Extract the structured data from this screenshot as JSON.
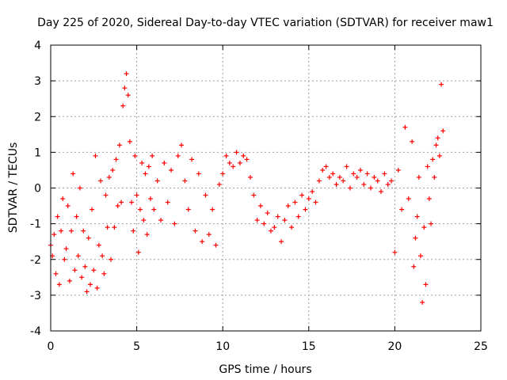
{
  "chart_data": {
    "type": "scatter",
    "title": "Day 225 of 2020, Sidereal Day-to-day VTEC variation (SDTVAR) for receiver maw1",
    "xlabel": "GPS time / hours",
    "ylabel": "SDTVAR / TECUs",
    "xlim": [
      0,
      25
    ],
    "ylim": [
      -4,
      4
    ],
    "x_ticks": [
      0,
      5,
      10,
      15,
      20,
      25
    ],
    "y_ticks": [
      -4,
      -3,
      -2,
      -1,
      0,
      1,
      2,
      3,
      4
    ],
    "grid": true,
    "marker": "+",
    "colors": {
      "series": "#ff0000",
      "grid": "#a0a0a0",
      "axis": "#000000"
    },
    "series": [
      {
        "name": "maw1",
        "x": [
          0.0,
          0.1,
          0.2,
          0.3,
          0.4,
          0.5,
          0.6,
          0.7,
          0.8,
          0.9,
          1.0,
          1.1,
          1.2,
          1.3,
          1.4,
          1.5,
          1.6,
          1.7,
          1.8,
          1.9,
          2.0,
          2.1,
          2.2,
          2.3,
          2.4,
          2.5,
          2.6,
          2.7,
          2.8,
          2.9,
          3.0,
          3.1,
          3.2,
          3.3,
          3.4,
          3.5,
          3.6,
          3.7,
          3.8,
          3.9,
          4.0,
          4.1,
          4.2,
          4.3,
          4.4,
          4.5,
          4.6,
          4.7,
          4.8,
          4.9,
          5.0,
          5.1,
          5.2,
          5.3,
          5.4,
          5.5,
          5.6,
          5.7,
          5.8,
          5.9,
          6.0,
          6.2,
          6.4,
          6.6,
          6.8,
          7.0,
          7.2,
          7.4,
          7.6,
          7.8,
          8.0,
          8.2,
          8.4,
          8.6,
          8.8,
          9.0,
          9.2,
          9.4,
          9.6,
          9.8,
          10.0,
          10.2,
          10.4,
          10.6,
          10.8,
          11.0,
          11.2,
          11.4,
          11.6,
          11.8,
          12.0,
          12.2,
          12.4,
          12.6,
          12.8,
          13.0,
          13.2,
          13.4,
          13.6,
          13.8,
          14.0,
          14.2,
          14.4,
          14.6,
          14.8,
          15.0,
          15.2,
          15.4,
          15.6,
          15.8,
          16.0,
          16.2,
          16.4,
          16.6,
          16.8,
          17.0,
          17.2,
          17.4,
          17.6,
          17.8,
          18.0,
          18.2,
          18.4,
          18.6,
          18.8,
          19.0,
          19.2,
          19.4,
          19.6,
          19.8,
          20.0,
          20.2,
          20.4,
          20.6,
          20.8,
          21.0,
          21.1,
          21.2,
          21.3,
          21.4,
          21.5,
          21.6,
          21.7,
          21.8,
          21.9,
          22.0,
          22.1,
          22.2,
          22.3,
          22.4,
          22.5,
          22.6,
          22.7,
          22.8
        ],
        "y": [
          -1.6,
          -1.9,
          -1.3,
          -2.4,
          -0.8,
          -2.7,
          -1.2,
          -0.3,
          -2.0,
          -1.7,
          -0.5,
          -2.6,
          -1.2,
          0.4,
          -2.3,
          -0.8,
          -1.9,
          0.0,
          -2.5,
          -1.2,
          -2.2,
          -2.9,
          -1.4,
          -2.7,
          -0.6,
          -2.3,
          0.9,
          -2.8,
          -1.6,
          0.2,
          -1.9,
          -2.4,
          -0.2,
          -1.1,
          0.3,
          -2.0,
          0.5,
          -1.1,
          0.8,
          -0.5,
          1.2,
          -0.4,
          2.3,
          2.8,
          3.2,
          2.6,
          1.3,
          -0.4,
          -1.2,
          0.9,
          -0.2,
          -1.8,
          -0.6,
          0.7,
          -0.9,
          0.4,
          -1.3,
          0.6,
          -0.3,
          0.9,
          -0.6,
          0.2,
          -0.9,
          0.7,
          -0.4,
          0.5,
          -1.0,
          0.9,
          1.2,
          0.2,
          -0.6,
          0.8,
          -1.2,
          0.4,
          -1.5,
          -0.2,
          -1.3,
          -0.6,
          -1.6,
          0.1,
          0.4,
          0.9,
          0.7,
          0.6,
          1.0,
          0.7,
          0.9,
          0.8,
          0.3,
          -0.2,
          -0.9,
          -0.5,
          -1.0,
          -0.7,
          -1.2,
          -1.1,
          -0.8,
          -1.5,
          -0.9,
          -0.5,
          -1.1,
          -0.4,
          -0.8,
          -0.2,
          -0.6,
          -0.3,
          -0.1,
          -0.4,
          0.2,
          0.5,
          0.6,
          0.3,
          0.4,
          0.1,
          0.3,
          0.2,
          0.6,
          0.0,
          0.4,
          0.3,
          0.5,
          0.1,
          0.4,
          0.0,
          0.3,
          0.2,
          -0.1,
          0.4,
          0.1,
          0.2,
          -1.8,
          0.5,
          -0.6,
          1.7,
          -0.3,
          1.3,
          -2.2,
          -1.4,
          -0.8,
          0.3,
          -1.9,
          -3.2,
          -1.1,
          -2.7,
          0.6,
          -0.3,
          -1.0,
          0.8,
          0.3,
          1.2,
          1.4,
          0.9,
          2.9,
          1.6
        ]
      }
    ]
  }
}
